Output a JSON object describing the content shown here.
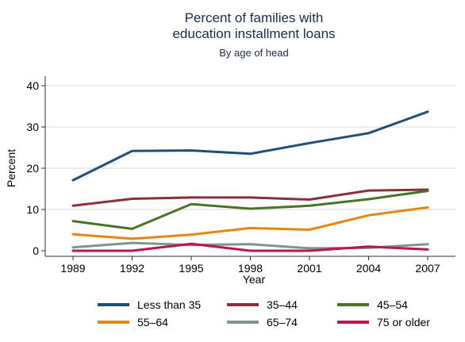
{
  "chart_data": {
    "type": "line",
    "title_line1": "Percent of families with",
    "title_line2": "education installment loans",
    "subtitle": "By age of head",
    "xlabel": "Year",
    "ylabel": "Percent",
    "x": [
      1989,
      1992,
      1995,
      1998,
      2001,
      2004,
      2007
    ],
    "x_tick_labels": [
      "1989",
      "1992",
      "1995",
      "1998",
      "2001",
      "2004",
      "2007"
    ],
    "ylim": [
      0,
      40
    ],
    "y_ticks": [
      0,
      10,
      20,
      30,
      40
    ],
    "y_tick_labels": [
      "0",
      "10",
      "20",
      "30",
      "40"
    ],
    "grid": "horizontal",
    "legend_position": "bottom",
    "series": [
      {
        "name": "Less than 35",
        "color": "#1f4e79",
        "values": [
          17.1,
          24.2,
          24.3,
          23.5,
          26.1,
          28.5,
          33.7
        ]
      },
      {
        "name": "35–44",
        "color": "#8b2f3c",
        "values": [
          10.9,
          12.6,
          12.9,
          12.9,
          12.4,
          14.6,
          14.8
        ]
      },
      {
        "name": "45–54",
        "color": "#4a7326",
        "values": [
          7.2,
          5.3,
          11.3,
          10.2,
          10.9,
          12.5,
          14.5
        ]
      },
      {
        "name": "55–64",
        "color": "#e8870f",
        "values": [
          4.0,
          2.9,
          3.9,
          5.5,
          5.1,
          8.6,
          10.5
        ]
      },
      {
        "name": "65–74",
        "color": "#7f9590",
        "values": [
          0.8,
          1.9,
          1.4,
          1.6,
          0.6,
          0.7,
          1.6
        ]
      },
      {
        "name": "75 or older",
        "color": "#c0144a",
        "values": [
          0.0,
          0.0,
          1.7,
          0.0,
          0.0,
          1.0,
          0.3
        ]
      }
    ]
  }
}
